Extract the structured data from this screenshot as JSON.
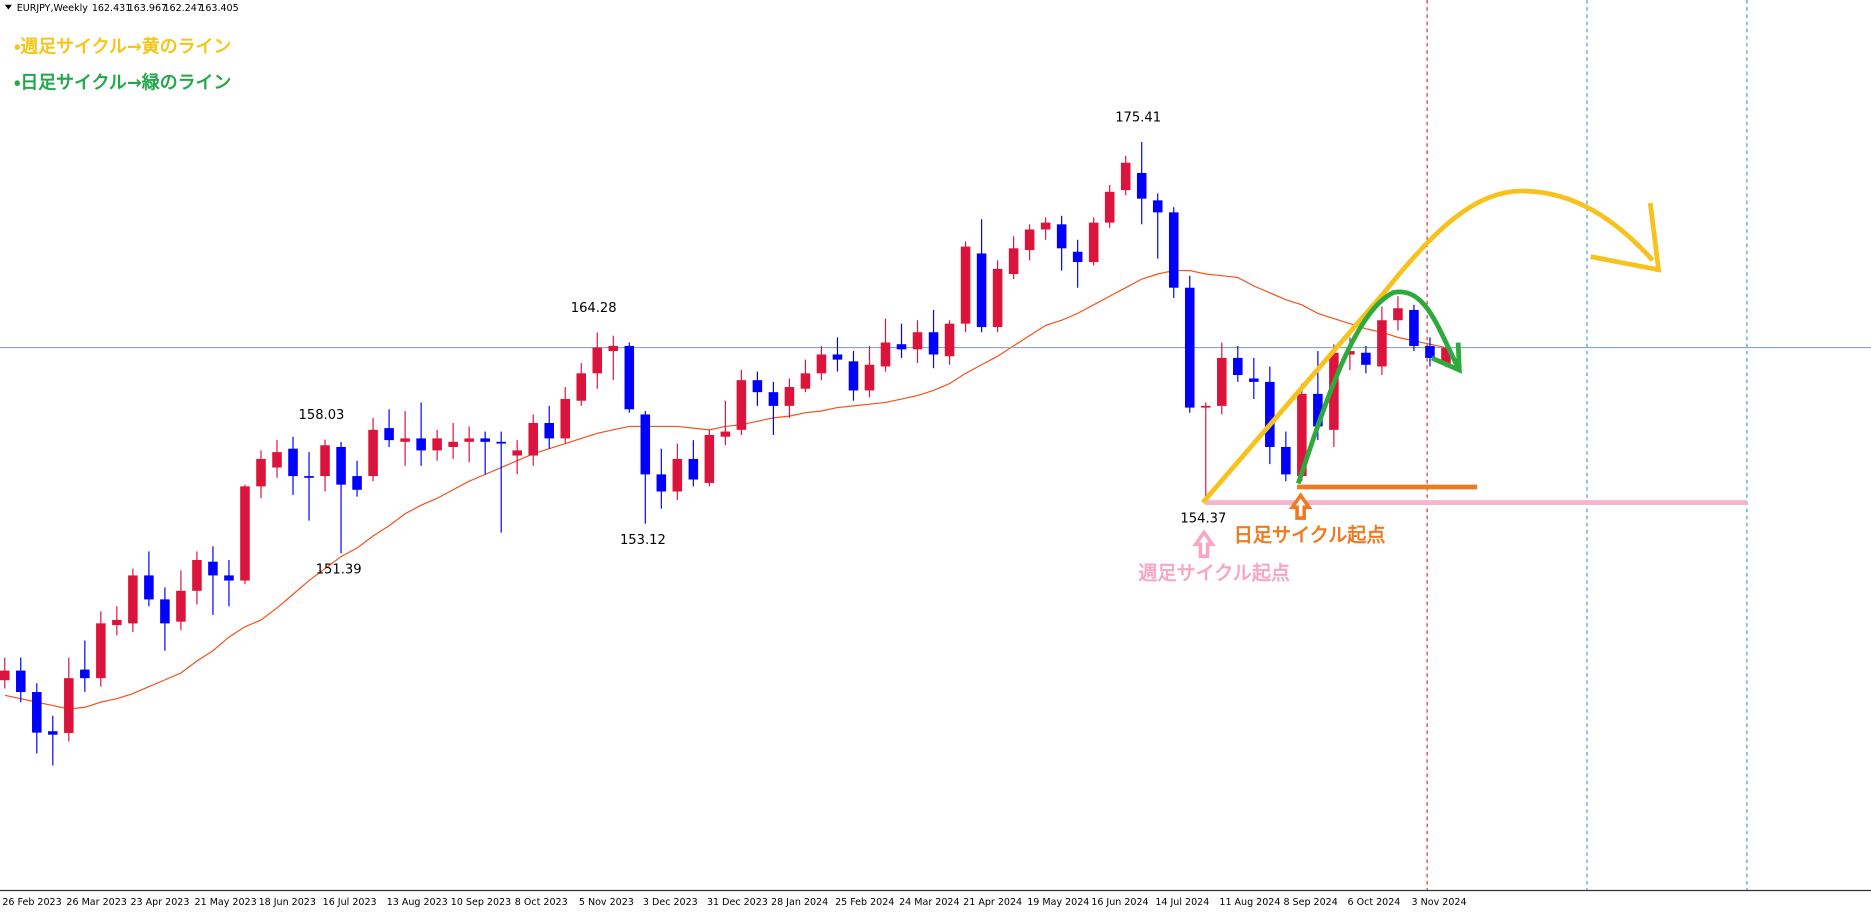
{
  "chart_data": {
    "type": "candlestick",
    "symbol": "EURJPY,Weekly",
    "up_color": "#dc143c",
    "down_color": "#0000ff",
    "ylim": [
      131.7,
      183.7
    ],
    "categories": [
      "26 Feb 2023",
      null,
      null,
      null,
      "26 Mar 2023",
      null,
      null,
      null,
      "23 Apr 2023",
      null,
      null,
      null,
      "21 May 2023",
      null,
      null,
      null,
      "18 Jun 2023",
      null,
      null,
      null,
      "16 Jul 2023",
      null,
      null,
      null,
      "13 Aug 2023",
      null,
      null,
      null,
      "10 Sep 2023",
      null,
      null,
      null,
      "8 Oct 2023",
      null,
      null,
      null,
      "5 Nov 2023",
      null,
      null,
      null,
      "3 Dec 2023",
      null,
      null,
      null,
      "31 Dec 2023",
      null,
      null,
      null,
      "28 Jan 2024",
      null,
      null,
      null,
      "25 Feb 2024",
      null,
      null,
      null,
      "24 Mar 2024",
      null,
      null,
      null,
      "21 Apr 2024",
      null,
      null,
      null,
      "19 May 2024",
      null,
      null,
      null,
      "16 Jun 2024",
      null,
      null,
      null,
      "14 Jul 2024",
      null,
      null,
      null,
      "11 Aug 2024",
      null,
      null,
      null,
      "8 Sep 2024",
      null,
      null,
      null,
      "6 Oct 2024",
      null,
      null,
      null,
      "3 Nov 2024",
      null,
      null
    ],
    "open": [
      143.98,
      144.54,
      143.29,
      141.0,
      140.9,
      144.6,
      144.1,
      147.2,
      147.3,
      150.1,
      148.7,
      147.4,
      149.2,
      150.9,
      150.1,
      149.8,
      155.3,
      156.4,
      157.5,
      155.9,
      155.9,
      157.6,
      155.9,
      155.9,
      158.7,
      157.9,
      158.1,
      157.4,
      157.6,
      157.9,
      158.1,
      157.9,
      157.1,
      157.1,
      159.0,
      158.1,
      160.3,
      161.9,
      163.2,
      163.5,
      159.5,
      156.0,
      155.0,
      156.9,
      155.5,
      158.2,
      158.6,
      161.5,
      160.8,
      160.0,
      161.0,
      161.9,
      163.0,
      162.6,
      160.9,
      162.3,
      163.6,
      163.3,
      164.3,
      162.9,
      164.8,
      168.9,
      164.6,
      167.7,
      169.1,
      170.3,
      170.6,
      169.0,
      168.4,
      170.7,
      172.6,
      173.6,
      172.0,
      171.3,
      166.9,
      159.9,
      160.0,
      162.8,
      161.6,
      161.4,
      157.6,
      155.9,
      160.7,
      158.6,
      163.0,
      163.1,
      162.3,
      165.0,
      165.6,
      163.5,
      162.431
    ],
    "high": [
      145.3,
      145.3,
      143.8,
      141.9,
      145.3,
      146.3,
      148.0,
      148.3,
      150.5,
      151.5,
      149.4,
      150.4,
      151.5,
      151.8,
      151.0,
      155.4,
      157.4,
      158.0,
      158.2,
      157.3,
      158.03,
      157.9,
      156.8,
      159.3,
      159.8,
      159.7,
      160.2,
      158.6,
      159.0,
      158.8,
      158.5,
      158.5,
      158.0,
      159.5,
      160.0,
      161.1,
      162.5,
      164.28,
      164.1,
      163.7,
      159.7,
      157.5,
      157.8,
      158.0,
      158.6,
      160.3,
      162.1,
      162.0,
      161.4,
      161.6,
      162.7,
      163.5,
      164.0,
      163.2,
      163.5,
      165.1,
      164.8,
      165.0,
      165.6,
      165.0,
      169.6,
      170.9,
      168.5,
      169.9,
      170.6,
      171.0,
      171.1,
      169.7,
      171.0,
      172.9,
      174.6,
      175.41,
      172.4,
      171.6,
      167.6,
      160.2,
      163.7,
      163.5,
      162.8,
      162.3,
      158.5,
      161.3,
      163.2,
      163.6,
      164.0,
      163.5,
      165.8,
      166.4,
      165.9,
      164.0,
      163.967
    ],
    "low": [
      143.5,
      142.7,
      139.7,
      139.0,
      140.4,
      143.3,
      143.6,
      146.6,
      146.8,
      148.3,
      145.7,
      146.9,
      148.4,
      147.8,
      148.3,
      149.6,
      154.6,
      155.8,
      154.8,
      153.3,
      155.0,
      151.39,
      154.7,
      155.6,
      157.6,
      156.5,
      156.5,
      156.8,
      156.9,
      156.7,
      156.0,
      152.6,
      156.0,
      156.5,
      157.5,
      157.8,
      160.0,
      161.0,
      161.5,
      159.6,
      153.12,
      154.0,
      154.5,
      155.3,
      155.3,
      157.7,
      158.3,
      160.0,
      158.3,
      159.3,
      160.8,
      161.5,
      162.0,
      160.3,
      160.5,
      162.0,
      162.8,
      162.5,
      162.2,
      162.4,
      164.3,
      164.3,
      164.3,
      167.4,
      168.5,
      169.7,
      167.9,
      166.9,
      168.2,
      170.4,
      172.3,
      170.6,
      168.6,
      166.3,
      159.6,
      154.37,
      159.5,
      161.4,
      160.4,
      156.6,
      155.6,
      155.6,
      158.0,
      157.6,
      162.1,
      161.9,
      161.8,
      164.4,
      163.2,
      162.3,
      162.247
    ],
    "close": [
      144.54,
      143.29,
      140.92,
      140.8,
      144.1,
      144.1,
      147.3,
      147.5,
      150.1,
      148.7,
      147.3,
      149.2,
      151.0,
      150.1,
      149.8,
      155.3,
      156.9,
      157.3,
      155.9,
      155.8,
      157.7,
      155.4,
      155.1,
      158.6,
      158.0,
      158.1,
      157.4,
      158.1,
      157.9,
      158.1,
      157.9,
      157.8,
      157.4,
      159.0,
      158.1,
      160.4,
      161.9,
      163.4,
      163.5,
      159.8,
      156.0,
      155.0,
      156.9,
      155.7,
      158.3,
      158.5,
      161.5,
      160.8,
      160.0,
      161.1,
      161.9,
      163.0,
      162.7,
      160.9,
      162.4,
      163.7,
      163.3,
      164.3,
      163.0,
      164.8,
      169.3,
      164.6,
      168.0,
      169.2,
      170.3,
      170.7,
      169.2,
      168.4,
      170.7,
      172.5,
      174.2,
      172.1,
      171.3,
      166.9,
      159.9,
      160.0,
      162.8,
      161.8,
      161.4,
      157.6,
      156.0,
      160.7,
      158.8,
      163.1,
      163.2,
      162.4,
      165.0,
      165.7,
      163.5,
      162.8,
      163.405
    ],
    "ma": {
      "color": "#f4511e",
      "values": [
        143.1,
        142.9,
        142.7,
        142.5,
        142.3,
        142.4,
        142.7,
        142.9,
        143.2,
        143.6,
        144.0,
        144.4,
        145.1,
        145.7,
        146.5,
        147.1,
        147.5,
        148.2,
        149.0,
        149.8,
        150.5,
        151.2,
        151.7,
        152.4,
        153.0,
        153.7,
        154.2,
        154.6,
        155.1,
        155.6,
        156.0,
        156.4,
        156.8,
        157.2,
        157.5,
        157.8,
        158.1,
        158.4,
        158.6,
        158.8,
        158.8,
        158.8,
        158.8,
        158.7,
        158.6,
        158.8,
        158.9,
        159.1,
        159.3,
        159.4,
        159.6,
        159.7,
        159.9,
        160.0,
        160.1,
        160.2,
        160.4,
        160.6,
        160.9,
        161.3,
        161.9,
        162.4,
        162.9,
        163.5,
        164.1,
        164.7,
        165.0,
        165.4,
        165.9,
        166.4,
        166.9,
        167.4,
        167.7,
        167.9,
        167.9,
        167.7,
        167.6,
        167.5,
        167.0,
        166.6,
        166.2,
        165.9,
        165.4,
        165.1,
        164.8,
        164.5,
        164.3,
        164.0,
        163.8,
        163.6,
        163.4
      ]
    },
    "annotations": {
      "weekly_note": "・週足サイクル→黄のライン",
      "daily_note": "・日足サイクル→緑のライン",
      "daily_start": "日足サイクル起点",
      "weekly_start": "週足サイクル起点"
    }
  }
}
